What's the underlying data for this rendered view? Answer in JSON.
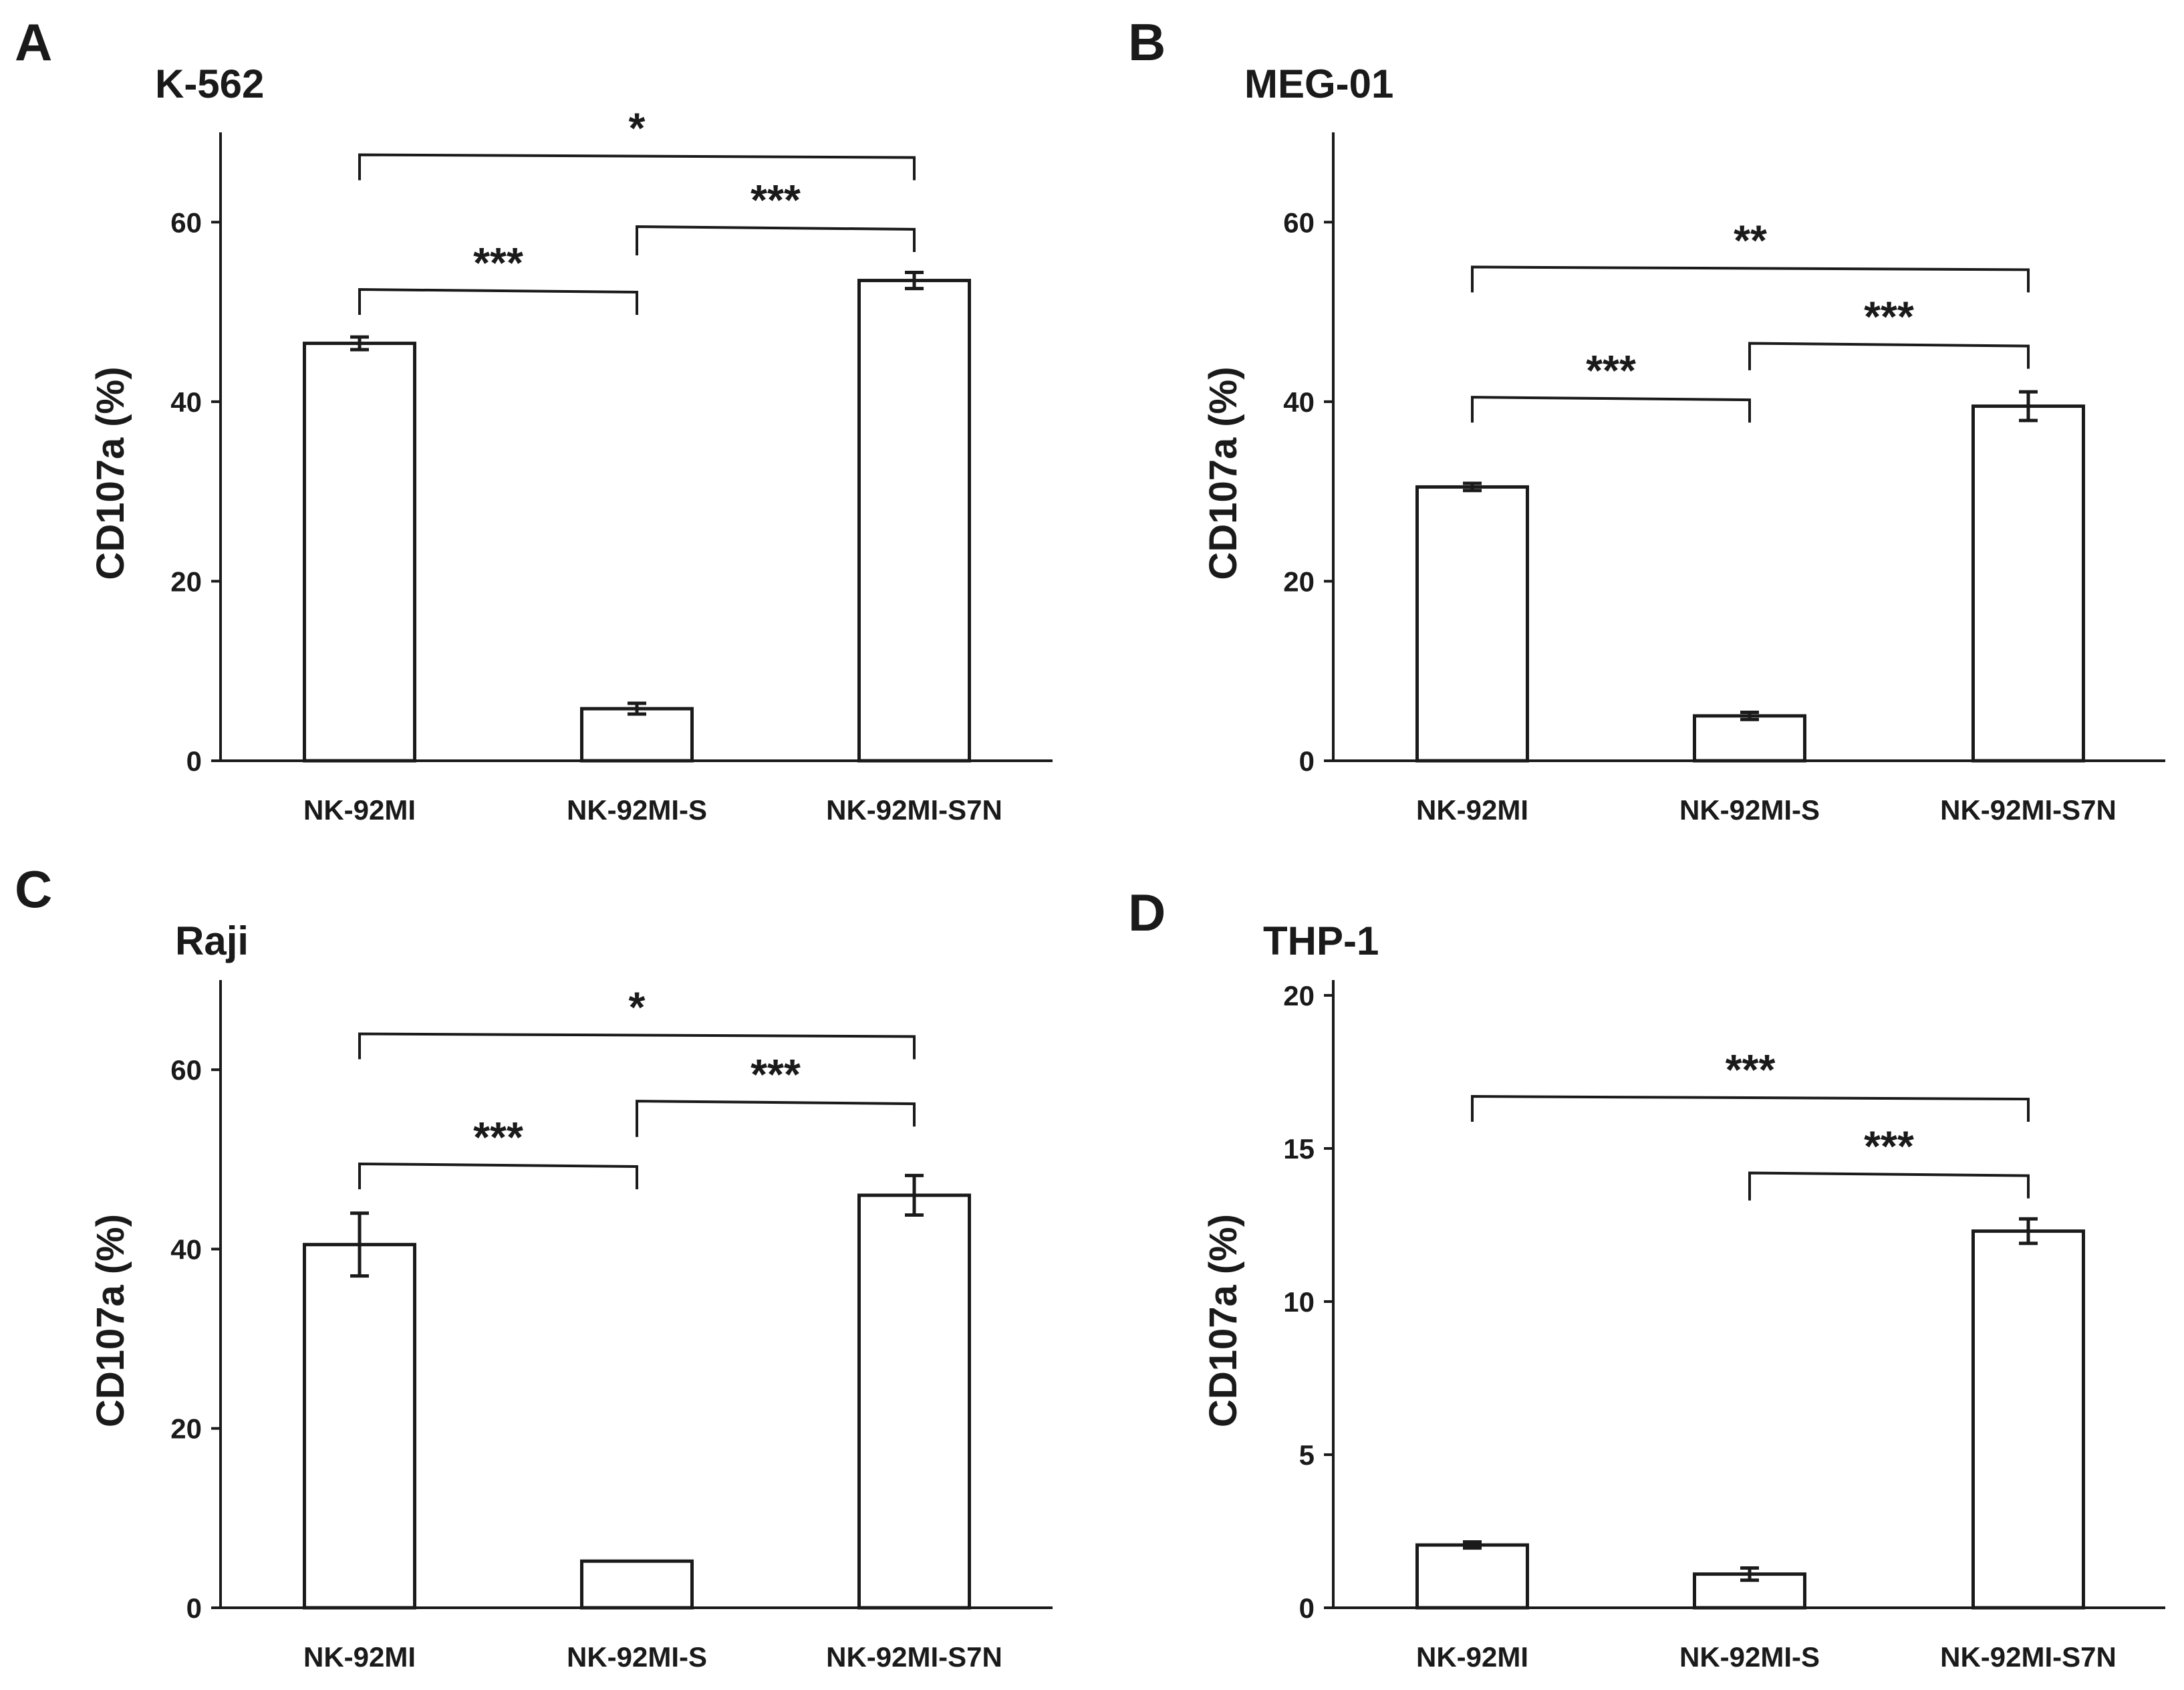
{
  "chart_data": [
    {
      "type": "bar",
      "panel": "A",
      "title": "K-562",
      "ylabel": "CD107a (%)",
      "xlabel": "",
      "ylim": [
        0,
        70
      ],
      "yticks": [
        0,
        20,
        40,
        60
      ],
      "categories": [
        "NK-92MI",
        "NK-92MI-S",
        "NK-92MI-S7N"
      ],
      "values": [
        46.5,
        5.8,
        53.5
      ],
      "errors": [
        0.7,
        0.6,
        0.9
      ],
      "significance": [
        {
          "from": 0,
          "to": 1,
          "label": "***",
          "y": 52.5,
          "lift": 0
        },
        {
          "from": 1,
          "to": 2,
          "label": "***",
          "y": 59.5,
          "lift": 56.3
        },
        {
          "from": 0,
          "to": 2,
          "label": "*",
          "y": 67.5,
          "lift": 0
        }
      ]
    },
    {
      "type": "bar",
      "panel": "B",
      "title": "MEG-01",
      "ylabel": "CD107a (%)",
      "xlabel": "",
      "ylim": [
        0,
        70
      ],
      "yticks": [
        0,
        20,
        40,
        60
      ],
      "categories": [
        "NK-92MI",
        "NK-92MI-S",
        "NK-92MI-S7N"
      ],
      "values": [
        30.5,
        5.0,
        39.5
      ],
      "errors": [
        0.4,
        0.4,
        1.6
      ],
      "significance": [
        {
          "from": 0,
          "to": 1,
          "label": "***",
          "y": 40.5,
          "lift": 0
        },
        {
          "from": 1,
          "to": 2,
          "label": "***",
          "y": 46.5,
          "lift": 43.5
        },
        {
          "from": 0,
          "to": 2,
          "label": "**",
          "y": 55.0,
          "lift": 0
        }
      ]
    },
    {
      "type": "bar",
      "panel": "C",
      "title": "Raji",
      "ylabel": "CD107a (%)",
      "xlabel": "",
      "ylim": [
        0,
        70
      ],
      "yticks": [
        0,
        20,
        40,
        60
      ],
      "categories": [
        "NK-92MI",
        "NK-92MI-S",
        "NK-92MI-S7N"
      ],
      "values": [
        40.5,
        5.2,
        46.0
      ],
      "errors": [
        3.5,
        0.0,
        2.2
      ],
      "significance": [
        {
          "from": 0,
          "to": 1,
          "label": "***",
          "y": 49.5,
          "lift": 0
        },
        {
          "from": 1,
          "to": 2,
          "label": "***",
          "y": 56.5,
          "lift": 52.5
        },
        {
          "from": 0,
          "to": 2,
          "label": "*",
          "y": 64.0,
          "lift": 0
        }
      ]
    },
    {
      "type": "bar",
      "panel": "D",
      "title": "THP-1",
      "ylabel": "CD107a (%)",
      "xlabel": "",
      "ylim": [
        0,
        20.5
      ],
      "yticks": [
        0,
        5,
        10,
        15,
        20
      ],
      "categories": [
        "NK-92MI",
        "NK-92MI-S",
        "NK-92MI-S7N"
      ],
      "values": [
        2.05,
        1.1,
        12.3
      ],
      "errors": [
        0.1,
        0.2,
        0.4
      ],
      "significance": [
        {
          "from": 1,
          "to": 2,
          "label": "***",
          "y": 14.2,
          "lift": 13.3
        },
        {
          "from": 0,
          "to": 2,
          "label": "***",
          "y": 16.7,
          "lift": 0
        }
      ]
    }
  ]
}
